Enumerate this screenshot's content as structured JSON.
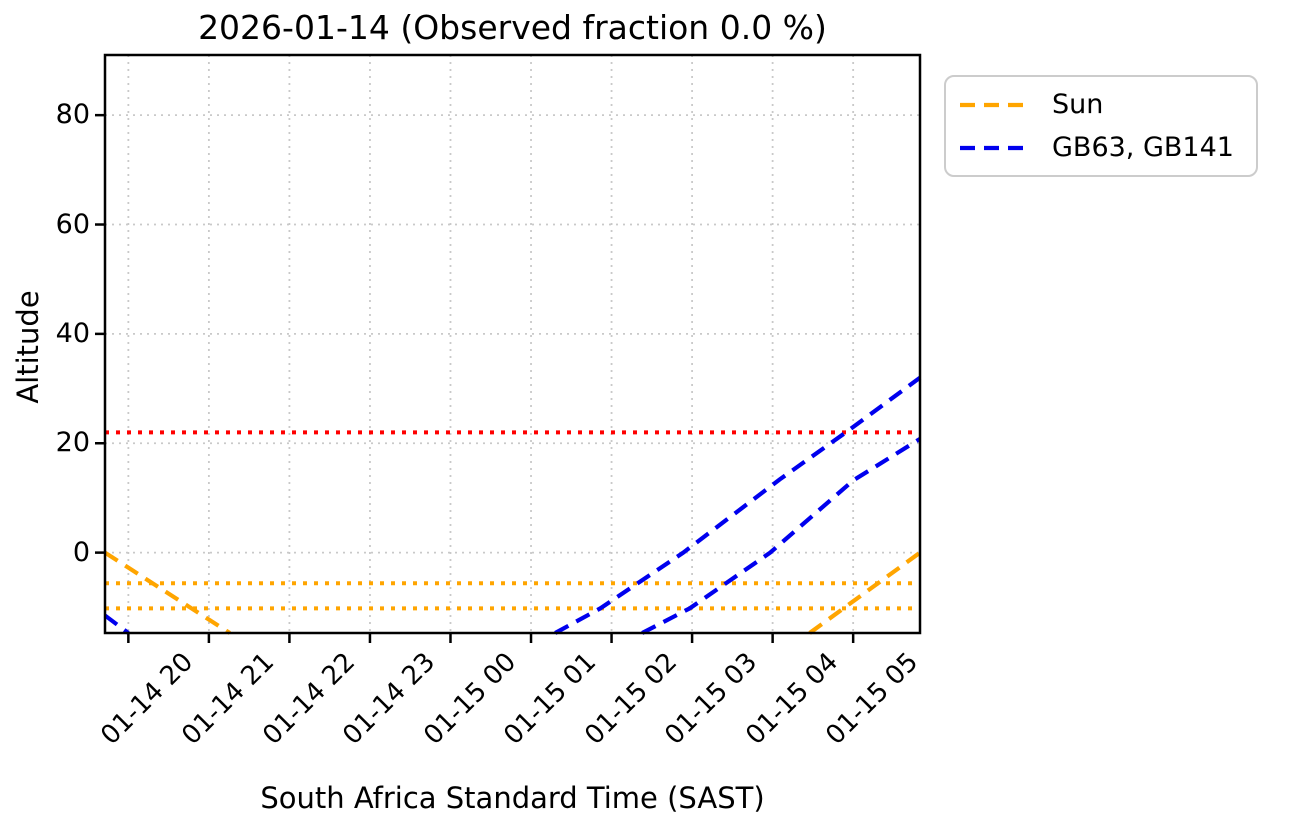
{
  "chart_data": {
    "type": "line",
    "title": "2026-01-14 (Observed fraction 0.0 %)",
    "xlabel": "South Africa Standard Time (SAST)",
    "ylabel": "Altitude",
    "x_unit": "hours since 2026-01-14 00:00 SAST (values > 24 are on 01-15)",
    "xlim": [
      19.71,
      29.83
    ],
    "ylim": [
      -14.7,
      91.0
    ],
    "grid": true,
    "xticks": {
      "values": [
        20,
        21,
        22,
        23,
        24,
        25,
        26,
        27,
        28,
        29
      ],
      "labels": [
        "01-14 20",
        "01-14 21",
        "01-14 22",
        "01-14 23",
        "01-15 00",
        "01-15 01",
        "01-15 02",
        "01-15 03",
        "01-15 04",
        "01-15 05"
      ]
    },
    "yticks": {
      "values": [
        0,
        20,
        40,
        60,
        80
      ],
      "labels": [
        "0",
        "20",
        "40",
        "60",
        "80"
      ]
    },
    "series": [
      {
        "name": "Sun",
        "color": "#ffa500",
        "style": "dashed",
        "segments": [
          [
            [
              19.71,
              0.0
            ],
            [
              21.26,
              -14.7
            ]
          ],
          [
            [
              28.46,
              -14.7
            ],
            [
              29.83,
              0.0
            ]
          ]
        ]
      },
      {
        "name": "GB63, GB141",
        "color": "#0000ee",
        "style": "dashed",
        "segments": [
          [
            [
              19.71,
              -11.5
            ],
            [
              20.0,
              -14.7
            ]
          ],
          [
            [
              25.3,
              -14.7
            ],
            [
              25.86,
              -10.2
            ],
            [
              26.89,
              0.0
            ],
            [
              28.09,
              13.4
            ],
            [
              28.92,
              22.1
            ],
            [
              29.83,
              32.0
            ]
          ],
          [
            [
              26.38,
              -14.7
            ],
            [
              26.97,
              -10.2
            ],
            [
              27.97,
              0.0
            ],
            [
              29.0,
              13.2
            ],
            [
              29.83,
              20.8
            ]
          ]
        ]
      }
    ],
    "hlines": [
      {
        "name": "elevation-limit-line",
        "y": 22,
        "color": "#ff0000",
        "style": "dotted"
      },
      {
        "name": "sun-twilight-line-upper",
        "y": -5.6,
        "color": "#ffa500",
        "style": "dotted"
      },
      {
        "name": "sun-twilight-line-lower",
        "y": -10.2,
        "color": "#ffa500",
        "style": "dotted"
      }
    ],
    "legend": {
      "position": "outside-top-right",
      "entries": [
        {
          "label": "Sun",
          "color": "#ffa500"
        },
        {
          "label": "GB63, GB141",
          "color": "#0000ee"
        }
      ]
    },
    "colors": {
      "grid": "#c9c9c9",
      "spine": "#000000",
      "background": "#ffffff"
    }
  }
}
